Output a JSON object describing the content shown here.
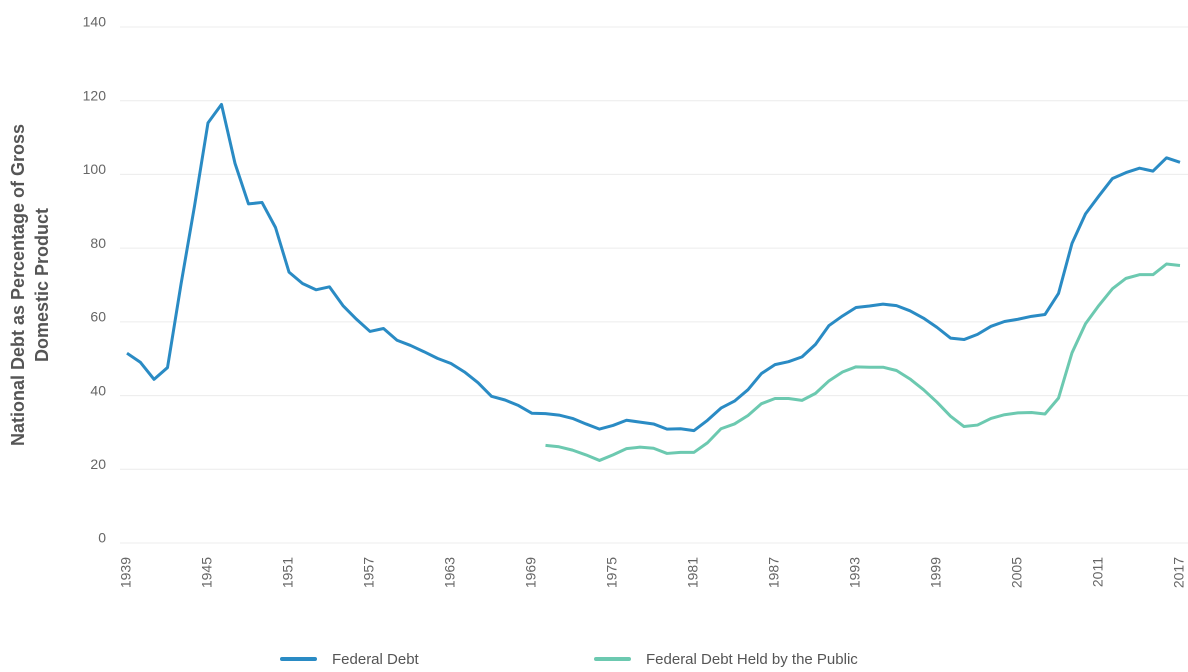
{
  "chart_data": {
    "type": "line",
    "y_label": "National Debt as Percentage of Gross Domestic Product",
    "x": [
      1939,
      1940,
      1941,
      1942,
      1943,
      1944,
      1945,
      1946,
      1947,
      1948,
      1949,
      1950,
      1951,
      1952,
      1953,
      1954,
      1955,
      1956,
      1957,
      1958,
      1959,
      1960,
      1961,
      1962,
      1963,
      1964,
      1965,
      1966,
      1967,
      1968,
      1969,
      1970,
      1971,
      1972,
      1973,
      1974,
      1975,
      1976,
      1977,
      1978,
      1979,
      1980,
      1981,
      1982,
      1983,
      1984,
      1985,
      1986,
      1987,
      1988,
      1989,
      1990,
      1991,
      1992,
      1993,
      1994,
      1995,
      1996,
      1997,
      1998,
      1999,
      2000,
      2001,
      2002,
      2003,
      2004,
      2005,
      2006,
      2007,
      2008,
      2009,
      2010,
      2011,
      2012,
      2013,
      2014,
      2015,
      2016,
      2017
    ],
    "series": [
      {
        "name": "Federal Debt",
        "color": "#2a8bc4",
        "values": [
          51.5,
          49,
          44.4,
          47.6,
          70.2,
          91.4,
          114,
          119,
          103,
          92,
          92.4,
          85.6,
          73.5,
          70.4,
          68.7,
          69.5,
          64.4,
          60.7,
          57.4,
          58.2,
          55,
          53.6,
          51.9,
          50.1,
          48.7,
          46.4,
          43.5,
          39.8,
          38.8,
          37.3,
          35.2,
          35.1,
          34.7,
          33.8,
          32.3,
          30.9,
          31.9,
          33.3,
          32.8,
          32.3,
          30.9,
          31,
          30.5,
          33.3,
          36.6,
          38.5,
          41.6,
          46,
          48.4,
          49.2,
          50.5,
          53.9,
          59,
          61.6,
          63.9,
          64.3,
          64.8,
          64.4,
          63,
          61,
          58.5,
          55.6,
          55.2,
          56.6,
          58.8,
          60.1,
          60.7,
          61.5,
          62,
          67.7,
          81.3,
          89.3,
          94.2,
          98.9,
          100.5,
          101.7,
          100.9,
          104.5,
          103.3
        ]
      },
      {
        "name": "Federal Debt Held by the Public",
        "color": "#6cc9b0",
        "values": [
          null,
          null,
          null,
          null,
          null,
          null,
          null,
          null,
          null,
          null,
          null,
          null,
          null,
          null,
          null,
          null,
          null,
          null,
          null,
          null,
          null,
          null,
          null,
          null,
          null,
          null,
          null,
          null,
          null,
          null,
          null,
          26.5,
          26.1,
          25.2,
          23.9,
          22.4,
          23.9,
          25.6,
          26,
          25.7,
          24.3,
          24.6,
          24.6,
          27.2,
          31,
          32.3,
          34.6,
          37.8,
          39.2,
          39.2,
          38.7,
          40.6,
          44,
          46.4,
          47.8,
          47.7,
          47.7,
          46.8,
          44.5,
          41.6,
          38.2,
          34.4,
          31.6,
          32,
          33.8,
          34.8,
          35.3,
          35.4,
          35,
          39.3,
          51.6,
          59.5,
          64.5,
          69,
          71.8,
          72.8,
          72.8,
          75.7,
          75.3
        ]
      }
    ],
    "xlim": [
      1939,
      2017
    ],
    "xticks": [
      1939,
      1945,
      1951,
      1957,
      1963,
      1969,
      1975,
      1981,
      1987,
      1993,
      1999,
      2005,
      2011,
      2017
    ],
    "ylim": [
      0,
      140
    ],
    "yticks": [
      0,
      20,
      40,
      60,
      80,
      100,
      120,
      140
    ],
    "grid": true,
    "legend": "bottom"
  }
}
